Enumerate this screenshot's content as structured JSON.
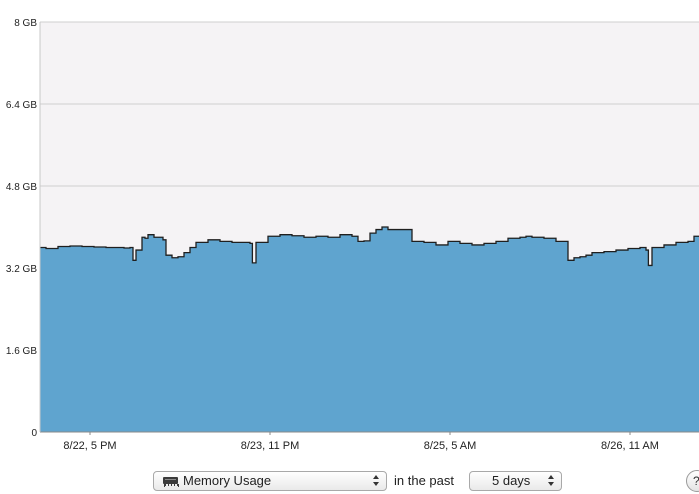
{
  "chart_data": {
    "type": "area",
    "ylabel": "",
    "xlabel": "",
    "ylim": [
      0,
      8
    ],
    "yticks": [
      {
        "value": 0,
        "label": "0"
      },
      {
        "value": 1.6,
        "label": "1.6 GB"
      },
      {
        "value": 3.2,
        "label": "3.2 GB"
      },
      {
        "value": 4.8,
        "label": "4.8 GB"
      },
      {
        "value": 6.4,
        "label": "6.4 GB"
      },
      {
        "value": 8,
        "label": "8 GB"
      }
    ],
    "xlim": [
      "8/22, 12 PM",
      "8/27, 5 AM"
    ],
    "xticks": [
      {
        "value": 5,
        "label": "8/22, 5 PM"
      },
      {
        "value": 35,
        "label": "8/23, 11 PM"
      },
      {
        "value": 65,
        "label": "8/25, 5 AM"
      },
      {
        "value": 95,
        "label": "8/26, 11 AM"
      }
    ],
    "grid": true,
    "series": [
      {
        "color": "#5fa4cf",
        "x": [
          0,
          1,
          3,
          5,
          7,
          9,
          11,
          13,
          14,
          15,
          15.5,
          16,
          17,
          17.5,
          18,
          19,
          20.5,
          21,
          22,
          23,
          24,
          25,
          26,
          28,
          30,
          32,
          34,
          35,
          35.4,
          36,
          38,
          40,
          42,
          44,
          46,
          48,
          50,
          52,
          53,
          54,
          55,
          56,
          57,
          58,
          60,
          62,
          64,
          66,
          68,
          70,
          72,
          74,
          76,
          78,
          80,
          81,
          82,
          84,
          86,
          88,
          89,
          90,
          91,
          92,
          94,
          96,
          98,
          100,
          101,
          101.4,
          102,
          104,
          106,
          108,
          109,
          110
        ],
        "values": [
          3.6,
          3.58,
          3.62,
          3.63,
          3.62,
          3.61,
          3.6,
          3.6,
          3.59,
          3.6,
          3.35,
          3.55,
          3.8,
          3.78,
          3.85,
          3.8,
          3.75,
          3.45,
          3.4,
          3.42,
          3.5,
          3.6,
          3.7,
          3.75,
          3.72,
          3.7,
          3.7,
          3.68,
          3.3,
          3.7,
          3.82,
          3.85,
          3.83,
          3.8,
          3.82,
          3.8,
          3.85,
          3.82,
          3.72,
          3.73,
          3.88,
          3.95,
          4.0,
          3.95,
          3.95,
          3.72,
          3.7,
          3.65,
          3.72,
          3.68,
          3.65,
          3.68,
          3.72,
          3.78,
          3.8,
          3.82,
          3.8,
          3.78,
          3.72,
          3.35,
          3.4,
          3.42,
          3.45,
          3.5,
          3.52,
          3.55,
          3.58,
          3.6,
          3.55,
          3.25,
          3.6,
          3.65,
          3.7,
          3.72,
          3.82,
          3.7
        ]
      }
    ]
  },
  "controls": {
    "metric_select": {
      "value": "Memory Usage",
      "icon": "memory-chip-icon"
    },
    "in_the_past_label": "in the past",
    "range_select": {
      "value": "5 days"
    }
  }
}
